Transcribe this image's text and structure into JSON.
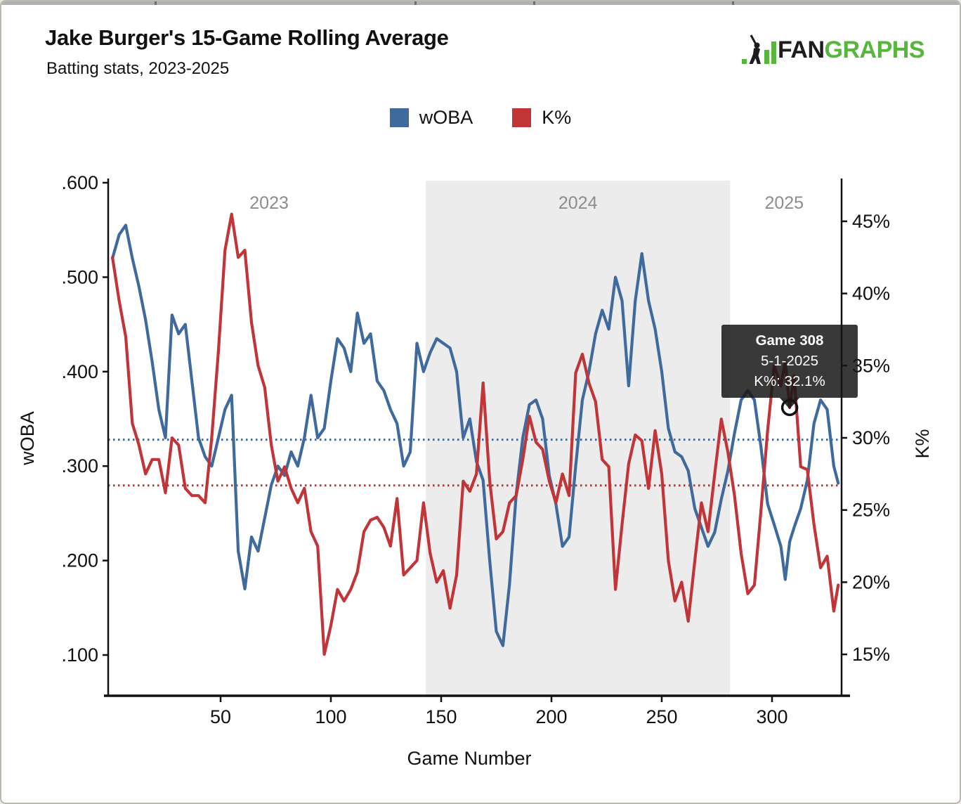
{
  "header": {
    "title": "Jake Burger's 15-Game Rolling Average",
    "subtitle": "Batting stats, 2023-2025",
    "logo": {
      "fan": "FAN",
      "graphs": "GRAPHS",
      "green": "#57b63c"
    }
  },
  "legend": {
    "items": [
      {
        "label": "wOBA",
        "color": "#3f6a9d"
      },
      {
        "label": "K%",
        "color": "#c13538"
      }
    ]
  },
  "tooltip": {
    "line1": "Game 308",
    "line2": "5-1-2025",
    "line3": "K%: 32.1%"
  },
  "chart_data": {
    "type": "line",
    "title": "Jake Burger's 15-Game Rolling Average",
    "subtitle": "Batting stats, 2023-2025",
    "xlabel": "Game Number",
    "ylabel_left": "wOBA",
    "ylabel_right": "K%",
    "x_range": [
      1,
      330
    ],
    "y_left_range": [
      0.057,
      0.602
    ],
    "y_right_range": [
      12.1,
      47.8
    ],
    "grid": false,
    "legend_position": "top-center",
    "x_ticks": [
      {
        "v": 50,
        "label": "50"
      },
      {
        "v": 100,
        "label": "100"
      },
      {
        "v": 150,
        "label": "150"
      },
      {
        "v": 200,
        "label": "200"
      },
      {
        "v": 250,
        "label": "250"
      },
      {
        "v": 300,
        "label": "300"
      }
    ],
    "y_left_ticks": [
      {
        "v": 0.1,
        "label": ".100"
      },
      {
        "v": 0.2,
        "label": ".200"
      },
      {
        "v": 0.3,
        "label": ".300"
      },
      {
        "v": 0.4,
        "label": ".400"
      },
      {
        "v": 0.5,
        "label": ".500"
      },
      {
        "v": 0.6,
        "label": ".600"
      }
    ],
    "y_right_ticks": [
      {
        "v": 15,
        "label": "15%"
      },
      {
        "v": 20,
        "label": "20%"
      },
      {
        "v": 25,
        "label": "25%"
      },
      {
        "v": 30,
        "label": "30%"
      },
      {
        "v": 35,
        "label": "35%"
      },
      {
        "v": 40,
        "label": "40%"
      },
      {
        "v": 45,
        "label": "45%"
      }
    ],
    "seasons": [
      {
        "label": "2023",
        "start": 1,
        "end": 143,
        "shaded": false
      },
      {
        "label": "2024",
        "start": 143,
        "end": 281,
        "shaded": true
      },
      {
        "label": "2025",
        "start": 281,
        "end": 330,
        "shaded": false
      }
    ],
    "season_band_color": "#ececec",
    "avg_lines": [
      {
        "series": "wOBA",
        "value": 0.328,
        "color": "#3f6a9d"
      },
      {
        "series": "K%",
        "value": 26.7,
        "color": "#c13538"
      }
    ],
    "marker": {
      "game": 308,
      "date": "5-1-2025",
      "k_pct": 32.1
    },
    "games": [
      1,
      4,
      7,
      10,
      13,
      16,
      19,
      22,
      25,
      28,
      31,
      34,
      37,
      40,
      43,
      46,
      49,
      52,
      55,
      58,
      61,
      64,
      67,
      70,
      73,
      76,
      79,
      82,
      85,
      88,
      91,
      94,
      97,
      100,
      103,
      106,
      109,
      112,
      115,
      118,
      121,
      124,
      127,
      130,
      133,
      136,
      139,
      142,
      145,
      148,
      151,
      154,
      157,
      160,
      163,
      166,
      169,
      172,
      175,
      178,
      181,
      184,
      187,
      190,
      193,
      196,
      199,
      202,
      205,
      208,
      211,
      214,
      217,
      220,
      223,
      226,
      229,
      232,
      235,
      238,
      241,
      244,
      247,
      250,
      253,
      256,
      259,
      262,
      265,
      268,
      271,
      274,
      277,
      280,
      283,
      286,
      289,
      292,
      295,
      298,
      301,
      304,
      306,
      308,
      310,
      313,
      316,
      319,
      322,
      325,
      328,
      330
    ],
    "series": [
      {
        "name": "wOBA",
        "axis": "left",
        "color": "#3f6a9d",
        "values": [
          0.52,
          0.545,
          0.555,
          0.52,
          0.49,
          0.455,
          0.41,
          0.36,
          0.33,
          0.46,
          0.44,
          0.45,
          0.39,
          0.33,
          0.31,
          0.3,
          0.33,
          0.36,
          0.375,
          0.21,
          0.17,
          0.225,
          0.21,
          0.245,
          0.28,
          0.3,
          0.29,
          0.315,
          0.3,
          0.33,
          0.375,
          0.33,
          0.34,
          0.39,
          0.435,
          0.425,
          0.4,
          0.462,
          0.43,
          0.44,
          0.39,
          0.38,
          0.36,
          0.345,
          0.3,
          0.315,
          0.43,
          0.4,
          0.42,
          0.435,
          0.43,
          0.425,
          0.4,
          0.33,
          0.35,
          0.305,
          0.285,
          0.2,
          0.125,
          0.11,
          0.175,
          0.27,
          0.33,
          0.365,
          0.37,
          0.35,
          0.29,
          0.26,
          0.215,
          0.225,
          0.3,
          0.37,
          0.4,
          0.44,
          0.465,
          0.445,
          0.5,
          0.475,
          0.385,
          0.475,
          0.525,
          0.475,
          0.445,
          0.4,
          0.34,
          0.315,
          0.31,
          0.295,
          0.255,
          0.235,
          0.215,
          0.23,
          0.265,
          0.295,
          0.335,
          0.37,
          0.38,
          0.37,
          0.32,
          0.26,
          0.238,
          0.215,
          0.18,
          0.22,
          0.235,
          0.255,
          0.285,
          0.345,
          0.37,
          0.36,
          0.3,
          0.282
        ]
      },
      {
        "name": "K%",
        "axis": "right",
        "color": "#c13538",
        "values": [
          42.5,
          39.5,
          37.0,
          31.0,
          29.5,
          27.5,
          28.5,
          28.5,
          26.2,
          30.0,
          29.5,
          26.5,
          26.0,
          26.0,
          25.5,
          30.0,
          36.0,
          43.0,
          45.5,
          42.5,
          43.0,
          38.0,
          35.0,
          33.5,
          29.5,
          27.0,
          28.0,
          26.5,
          25.5,
          26.5,
          23.5,
          22.5,
          15.0,
          17.0,
          19.5,
          18.7,
          19.5,
          20.7,
          23.5,
          24.3,
          24.5,
          23.8,
          22.5,
          25.8,
          20.5,
          21.0,
          21.5,
          25.5,
          22.0,
          20.0,
          20.8,
          18.2,
          20.5,
          27.0,
          26.3,
          27.5,
          33.8,
          27.0,
          23.0,
          23.5,
          25.5,
          26.0,
          28.5,
          31.5,
          29.7,
          29.2,
          27.0,
          25.5,
          27.5,
          26.0,
          34.5,
          35.8,
          33.8,
          32.5,
          28.5,
          28.0,
          19.5,
          24.0,
          28.2,
          30.2,
          29.8,
          26.5,
          30.5,
          27.5,
          21.5,
          18.7,
          20.0,
          17.3,
          21.5,
          25.5,
          23.5,
          27.5,
          31.3,
          29.0,
          26.0,
          22.0,
          19.2,
          19.8,
          25.0,
          30.5,
          35.0,
          33.6,
          35.3,
          32.1,
          34.3,
          28.0,
          27.8,
          24.0,
          21.0,
          21.8,
          18.0,
          19.8
        ]
      }
    ]
  }
}
